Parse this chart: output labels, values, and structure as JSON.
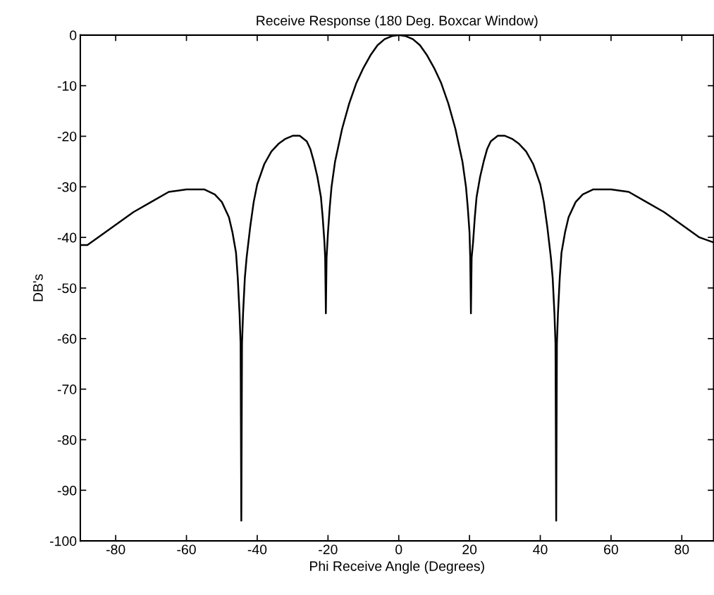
{
  "chart_data": {
    "type": "line",
    "title": "Receive Response (180 Deg. Boxcar Window)",
    "xlabel": "Phi Receive Angle (Degrees)",
    "ylabel": "DB's",
    "x": [
      -90,
      -88,
      -85,
      -80,
      -75,
      -70,
      -65,
      -60,
      -55,
      -52,
      -50,
      -48,
      -47,
      -46,
      -45.5,
      -45,
      -44.7,
      -44.5,
      -44.3,
      -44,
      -43.5,
      -43,
      -42,
      -41,
      -40,
      -38,
      -36,
      -34,
      -32,
      -30,
      -28,
      -26,
      -25,
      -24,
      -23,
      -22,
      -21.5,
      -21,
      -20.8,
      -20.6,
      -20.4,
      -20,
      -19.5,
      -19,
      -18,
      -16,
      -14,
      -12,
      -10,
      -8,
      -6,
      -4,
      -2,
      0,
      2,
      4,
      6,
      8,
      10,
      12,
      14,
      16,
      18,
      19,
      19.5,
      20,
      20.2,
      20.4,
      20.6,
      21,
      21.5,
      22,
      23,
      24,
      25,
      26,
      28,
      30,
      32,
      34,
      36,
      38,
      40,
      41,
      42,
      43,
      43.5,
      44,
      44.3,
      44.5,
      44.7,
      45,
      45.5,
      46,
      47,
      48,
      50,
      52,
      55,
      60,
      65,
      70,
      75,
      80,
      85,
      89
    ],
    "series": [
      {
        "color": "#000000",
        "values": [
          -41.5,
          -41.5,
          -40,
          -37.5,
          -35,
          -33,
          -31,
          -30.5,
          -30.5,
          -31.5,
          -33,
          -36,
          -39,
          -43,
          -48,
          -55,
          -61,
          -96,
          -61,
          -55,
          -48,
          -44,
          -38,
          -33,
          -29.5,
          -25.5,
          -23,
          -21.5,
          -20.5,
          -19.9,
          -19.9,
          -21,
          -22.5,
          -25,
          -28,
          -32,
          -36,
          -41,
          -44,
          -55,
          -44,
          -39,
          -34,
          -30,
          -25,
          -18.5,
          -13.5,
          -9.5,
          -6.5,
          -4,
          -2,
          -0.8,
          -0.2,
          0,
          -0.2,
          -0.8,
          -2,
          -4,
          -6.5,
          -9.5,
          -13.5,
          -18.5,
          -25,
          -30,
          -34,
          -39,
          -44,
          -55,
          -44,
          -41,
          -36,
          -32,
          -28,
          -25,
          -22.5,
          -21,
          -19.9,
          -19.9,
          -20.5,
          -21.5,
          -23,
          -25.5,
          -29.5,
          -33,
          -38,
          -44,
          -48,
          -55,
          -61,
          -96,
          -61,
          -55,
          -48,
          -43,
          -39,
          -36,
          -33,
          -31.5,
          -30.5,
          -30.5,
          -31,
          -33,
          -35,
          -37.5,
          -40,
          -41
        ]
      }
    ],
    "xlim": [
      -90,
      89
    ],
    "ylim": [
      -100,
      0
    ],
    "xticks": [
      -80,
      -60,
      -40,
      -20,
      0,
      20,
      40,
      60,
      80
    ],
    "yticks": [
      -100,
      -90,
      -80,
      -70,
      -60,
      -50,
      -40,
      -30,
      -20,
      -10,
      0
    ],
    "grid": false,
    "line_style": "solid"
  }
}
